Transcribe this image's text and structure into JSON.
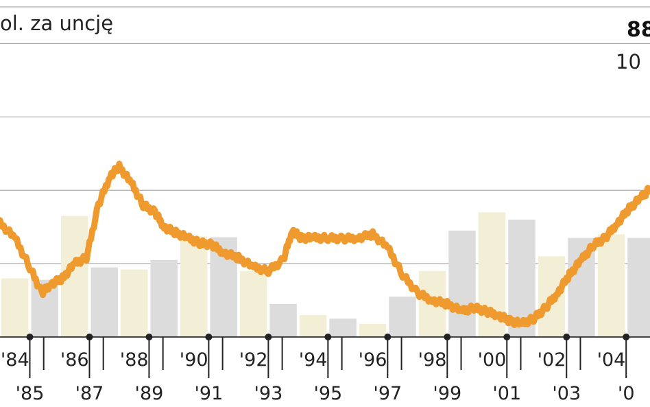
{
  "header": {
    "unit": "ol. za uncję",
    "value_partial": "88",
    "subvalue_partial": "10"
  },
  "colors": {
    "line": "#ef9a2f",
    "bar_yellow": "#f3efd6",
    "bar_gray": "#dcdcdc",
    "grid": "#aaaaaa",
    "axis": "#444444"
  },
  "chart_data": {
    "type": "line",
    "x_tick_labels_top": [
      "'84",
      "'86",
      "'88",
      "'90",
      "'92",
      "'94",
      "'96",
      "'98",
      "'00",
      "'02",
      "'04"
    ],
    "x_tick_labels_bottom": [
      "'85",
      "'87",
      "'89",
      "'91",
      "'93",
      "'95",
      "'97",
      "'99",
      "'01",
      "'03",
      "'0"
    ],
    "series": [
      {
        "x": [
          1983.5,
          1984.0,
          1984.5,
          1984.9,
          1985.2,
          1985.6,
          1986.0,
          1986.4,
          1986.8,
          1987.2,
          1987.5,
          1987.9,
          1988.3,
          1988.7,
          1989.0,
          1989.4,
          1989.8,
          1990.2,
          1990.6,
          1991.0,
          1991.5,
          1992.0,
          1992.5,
          1993.0,
          1993.3,
          1993.6,
          1994.0,
          1994.5,
          1995.0,
          1995.5,
          1996.0,
          1996.5,
          1997.0,
          1997.5,
          1998.0,
          1998.5,
          1999.0,
          1999.4,
          1999.8,
          2000.2,
          2000.6,
          2001.0,
          2001.4,
          2001.8,
          2002.2,
          2002.6,
          2003.0,
          2003.4,
          2003.8,
          2004.2,
          2004.6,
          2005.0,
          2005.3
        ],
        "y": [
          405,
          385,
          345,
          310,
          322,
          330,
          350,
          358,
          430,
          470,
          482,
          460,
          430,
          420,
          400,
          392,
          385,
          378,
          376,
          365,
          358,
          345,
          340,
          355,
          395,
          385,
          385,
          385,
          384,
          385,
          390,
          372,
          335,
          310,
          300,
          295,
          285,
          290,
          285,
          280,
          272,
          268,
          275,
          290,
          310,
          335,
          355,
          375,
          385,
          405,
          425,
          440,
          452
        ]
      }
    ],
    "yellow_bar_years": [
      1984,
      1986,
      1988,
      1990,
      1992,
      1994,
      1996,
      1998,
      2000,
      2002,
      2004
    ],
    "gray_bar_years": [
      1985,
      1987,
      1989,
      1991,
      1993,
      1995,
      1997,
      1999,
      2001,
      2003,
      2005
    ],
    "bar_values": [
      330,
      328,
      415,
      345,
      342,
      355,
      387,
      386,
      340,
      295,
      280,
      275,
      268,
      305,
      340,
      395,
      420,
      410,
      360,
      385,
      390,
      385
    ],
    "ylim": [
      250,
      700
    ],
    "xlim": [
      1983.5,
      2005.3
    ],
    "grid": true
  }
}
